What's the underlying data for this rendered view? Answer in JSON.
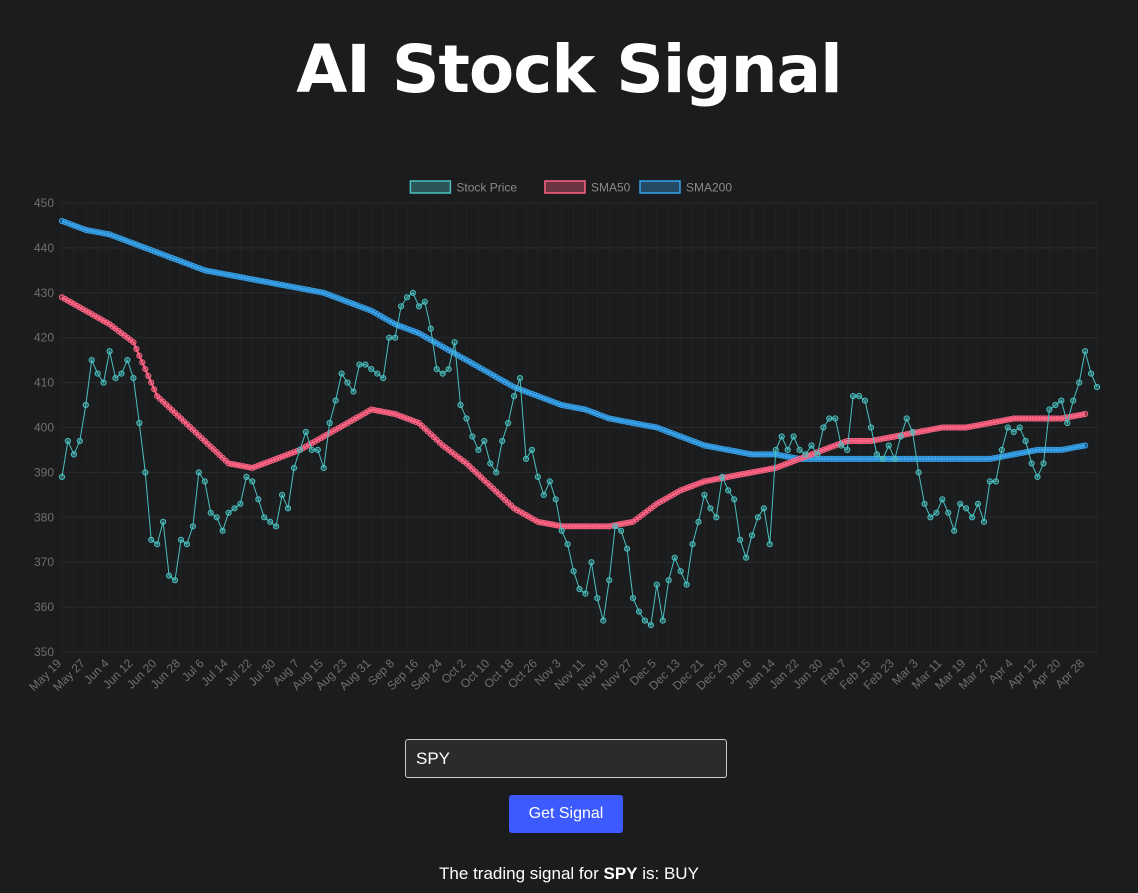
{
  "header": {
    "title": "AI Stock Signal"
  },
  "form": {
    "ticker_value": "SPY",
    "button_label": "Get Signal"
  },
  "result": {
    "prefix": "The trading signal for",
    "ticker": "SPY",
    "suffix": "is: BUY"
  },
  "colors": {
    "price": "#4bc0c0",
    "sma50": "#ff6384",
    "sma200": "#36a2eb"
  },
  "chart_data": {
    "type": "line",
    "ylim": [
      350,
      450
    ],
    "yticks": [
      350,
      360,
      370,
      380,
      390,
      400,
      410,
      420,
      430,
      440,
      450
    ],
    "x_tick_labels": [
      "May 19",
      "May 27",
      "Jun 4",
      "Jun 12",
      "Jun 20",
      "Jun 28",
      "Jul 6",
      "Jul 14",
      "Jul 22",
      "Jul 30",
      "Aug 7",
      "Aug 15",
      "Aug 23",
      "Aug 31",
      "Sep 8",
      "Sep 16",
      "Sep 24",
      "Oct 2",
      "Oct 10",
      "Oct 18",
      "Oct 26",
      "Nov 3",
      "Nov 11",
      "Nov 19",
      "Nov 27",
      "Dec 5",
      "Dec 13",
      "Dec 21",
      "Dec 29",
      "Jan 6",
      "Jan 14",
      "Jan 22",
      "Jan 30",
      "Feb 7",
      "Feb 15",
      "Feb 23",
      "Mar 3",
      "Mar 11",
      "Mar 19",
      "Mar 27",
      "Apr 4",
      "Apr 12",
      "Apr 20",
      "Apr 28"
    ],
    "grid": true,
    "legend": "top-center",
    "series": [
      {
        "name": "Stock Price",
        "key": "price",
        "points": [
          [
            "May 19",
            389
          ],
          [
            "May 21",
            397
          ],
          [
            "May 23",
            394
          ],
          [
            "May 25",
            397
          ],
          [
            "May 27",
            405
          ],
          [
            "May 29",
            415
          ],
          [
            "May 31",
            412
          ],
          [
            "Jun 2",
            410
          ],
          [
            "Jun 4",
            417
          ],
          [
            "Jun 6",
            411
          ],
          [
            "Jun 8",
            412
          ],
          [
            "Jun 10",
            415
          ],
          [
            "Jun 12",
            411
          ],
          [
            "Jun 14",
            401
          ],
          [
            "Jun 16",
            390
          ],
          [
            "Jun 18",
            375
          ],
          [
            "Jun 20",
            374
          ],
          [
            "Jun 22",
            379
          ],
          [
            "Jun 24",
            367
          ],
          [
            "Jun 26",
            366
          ],
          [
            "Jun 28",
            375
          ],
          [
            "Jun 30",
            374
          ],
          [
            "Jul 2",
            378
          ],
          [
            "Jul 4",
            390
          ],
          [
            "Jul 6",
            388
          ],
          [
            "Jul 8",
            381
          ],
          [
            "Jul 10",
            380
          ],
          [
            "Jul 12",
            377
          ],
          [
            "Jul 14",
            381
          ],
          [
            "Jul 16",
            382
          ],
          [
            "Jul 18",
            383
          ],
          [
            "Jul 20",
            389
          ],
          [
            "Jul 22",
            388
          ],
          [
            "Jul 24",
            384
          ],
          [
            "Jul 26",
            380
          ],
          [
            "Jul 28",
            379
          ],
          [
            "Jul 30",
            378
          ],
          [
            "Aug 1",
            385
          ],
          [
            "Aug 3",
            382
          ],
          [
            "Aug 5",
            391
          ],
          [
            "Aug 7",
            395
          ],
          [
            "Aug 9",
            399
          ],
          [
            "Aug 11",
            395
          ],
          [
            "Aug 13",
            395
          ],
          [
            "Aug 15",
            391
          ],
          [
            "Aug 17",
            401
          ],
          [
            "Aug 19",
            406
          ],
          [
            "Aug 21",
            412
          ],
          [
            "Aug 23",
            410
          ],
          [
            "Aug 25",
            408
          ],
          [
            "Aug 27",
            414
          ],
          [
            "Aug 29",
            414
          ],
          [
            "Aug 31",
            413
          ],
          [
            "Sep 2",
            412
          ],
          [
            "Sep 4",
            411
          ],
          [
            "Sep 6",
            420
          ],
          [
            "Sep 8",
            420
          ],
          [
            "Sep 10",
            427
          ],
          [
            "Sep 12",
            429
          ],
          [
            "Sep 14",
            430
          ],
          [
            "Sep 16",
            427
          ],
          [
            "Sep 18",
            428
          ],
          [
            "Sep 20",
            422
          ],
          [
            "Sep 22",
            413
          ],
          [
            "Sep 24",
            412
          ],
          [
            "Sep 26",
            413
          ],
          [
            "Sep 28",
            419
          ],
          [
            "Sep 30",
            405
          ],
          [
            "Oct 2",
            402
          ],
          [
            "Oct 4",
            398
          ],
          [
            "Oct 6",
            395
          ],
          [
            "Oct 8",
            397
          ],
          [
            "Oct 10",
            392
          ],
          [
            "Oct 12",
            390
          ],
          [
            "Oct 14",
            397
          ],
          [
            "Oct 16",
            401
          ],
          [
            "Oct 18",
            407
          ],
          [
            "Oct 20",
            411
          ],
          [
            "Oct 22",
            393
          ],
          [
            "Oct 24",
            395
          ],
          [
            "Oct 26",
            389
          ],
          [
            "Oct 28",
            385
          ],
          [
            "Oct 30",
            388
          ],
          [
            "Nov 1",
            384
          ],
          [
            "Nov 3",
            377
          ],
          [
            "Nov 5",
            374
          ],
          [
            "Nov 7",
            368
          ],
          [
            "Nov 9",
            364
          ],
          [
            "Nov 11",
            363
          ],
          [
            "Nov 13",
            370
          ],
          [
            "Nov 15",
            362
          ],
          [
            "Nov 17",
            357
          ],
          [
            "Nov 19",
            366
          ],
          [
            "Nov 21",
            378
          ],
          [
            "Nov 23",
            377
          ],
          [
            "Nov 25",
            373
          ],
          [
            "Nov 27",
            362
          ],
          [
            "Nov 29",
            359
          ],
          [
            "Dec 1",
            357
          ],
          [
            "Dec 3",
            356
          ],
          [
            "Dec 5",
            365
          ],
          [
            "Dec 7",
            357
          ],
          [
            "Dec 9",
            366
          ],
          [
            "Dec 11",
            371
          ],
          [
            "Dec 13",
            368
          ],
          [
            "Dec 15",
            365
          ],
          [
            "Dec 17",
            374
          ],
          [
            "Dec 19",
            379
          ],
          [
            "Dec 21",
            385
          ],
          [
            "Dec 23",
            382
          ],
          [
            "Dec 25",
            380
          ],
          [
            "Dec 27",
            389
          ],
          [
            "Dec 29",
            386
          ],
          [
            "Dec 31",
            384
          ],
          [
            "Jan 2",
            375
          ],
          [
            "Jan 4",
            371
          ],
          [
            "Jan 6",
            376
          ],
          [
            "Jan 8",
            380
          ],
          [
            "Jan 10",
            382
          ],
          [
            "Jan 12",
            374
          ],
          [
            "Jan 14",
            395
          ],
          [
            "Jan 16",
            398
          ],
          [
            "Jan 18",
            395
          ],
          [
            "Jan 20",
            398
          ],
          [
            "Jan 22",
            395
          ],
          [
            "Jan 24",
            394
          ],
          [
            "Jan 26",
            396
          ],
          [
            "Jan 28",
            394
          ],
          [
            "Jan 30",
            400
          ],
          [
            "Feb 1",
            402
          ],
          [
            "Feb 3",
            402
          ],
          [
            "Feb 5",
            396
          ],
          [
            "Feb 7",
            395
          ],
          [
            "Feb 9",
            407
          ],
          [
            "Feb 11",
            407
          ],
          [
            "Feb 13",
            406
          ],
          [
            "Feb 15",
            400
          ],
          [
            "Feb 17",
            394
          ],
          [
            "Feb 19",
            393
          ],
          [
            "Feb 21",
            396
          ],
          [
            "Feb 23",
            393
          ],
          [
            "Feb 25",
            398
          ],
          [
            "Feb 27",
            402
          ],
          [
            "Mar 1",
            399
          ],
          [
            "Mar 3",
            390
          ],
          [
            "Mar 5",
            383
          ],
          [
            "Mar 7",
            380
          ],
          [
            "Mar 9",
            381
          ],
          [
            "Mar 11",
            384
          ],
          [
            "Mar 13",
            381
          ],
          [
            "Mar 15",
            377
          ],
          [
            "Mar 17",
            383
          ],
          [
            "Mar 19",
            382
          ],
          [
            "Mar 21",
            380
          ],
          [
            "Mar 23",
            383
          ],
          [
            "Mar 25",
            379
          ],
          [
            "Mar 27",
            388
          ],
          [
            "Mar 29",
            388
          ],
          [
            "Mar 31",
            395
          ],
          [
            "Apr 2",
            400
          ],
          [
            "Apr 4",
            399
          ],
          [
            "Apr 6",
            400
          ],
          [
            "Apr 8",
            397
          ],
          [
            "Apr 10",
            392
          ],
          [
            "Apr 12",
            389
          ],
          [
            "Apr 14",
            392
          ],
          [
            "Apr 16",
            404
          ],
          [
            "Apr 18",
            405
          ],
          [
            "Apr 20",
            406
          ],
          [
            "Apr 22",
            401
          ],
          [
            "Apr 24",
            406
          ],
          [
            "Apr 26",
            410
          ],
          [
            "Apr 28",
            417
          ],
          [
            "Apr 30",
            412
          ],
          [
            "May 2",
            409
          ]
        ]
      },
      {
        "name": "SMA50",
        "key": "sma50",
        "points": [
          [
            "May 19",
            429
          ],
          [
            "May 27",
            426
          ],
          [
            "Jun 4",
            423
          ],
          [
            "Jun 12",
            419
          ],
          [
            "Jun 20",
            407
          ],
          [
            "Jun 28",
            402
          ],
          [
            "Jul 6",
            397
          ],
          [
            "Jul 14",
            392
          ],
          [
            "Jul 22",
            391
          ],
          [
            "Jul 30",
            393
          ],
          [
            "Aug 7",
            395
          ],
          [
            "Aug 15",
            398
          ],
          [
            "Aug 23",
            401
          ],
          [
            "Aug 31",
            404
          ],
          [
            "Sep 8",
            403
          ],
          [
            "Sep 16",
            401
          ],
          [
            "Sep 24",
            396
          ],
          [
            "Oct 2",
            392
          ],
          [
            "Oct 10",
            387
          ],
          [
            "Oct 18",
            382
          ],
          [
            "Oct 26",
            379
          ],
          [
            "Nov 3",
            378
          ],
          [
            "Nov 11",
            378
          ],
          [
            "Nov 19",
            378
          ],
          [
            "Nov 27",
            379
          ],
          [
            "Dec 5",
            383
          ],
          [
            "Dec 13",
            386
          ],
          [
            "Dec 21",
            388
          ],
          [
            "Dec 29",
            389
          ],
          [
            "Jan 6",
            390
          ],
          [
            "Jan 14",
            391
          ],
          [
            "Jan 22",
            393
          ],
          [
            "Jan 30",
            395
          ],
          [
            "Feb 7",
            397
          ],
          [
            "Feb 15",
            397
          ],
          [
            "Feb 23",
            398
          ],
          [
            "Mar 3",
            399
          ],
          [
            "Mar 11",
            400
          ],
          [
            "Mar 19",
            400
          ],
          [
            "Mar 27",
            401
          ],
          [
            "Apr 4",
            402
          ],
          [
            "Apr 12",
            402
          ],
          [
            "Apr 20",
            402
          ],
          [
            "Apr 28",
            403
          ]
        ]
      },
      {
        "name": "SMA200",
        "key": "sma200",
        "points": [
          [
            "May 19",
            446
          ],
          [
            "May 27",
            444
          ],
          [
            "Jun 4",
            443
          ],
          [
            "Jun 12",
            441
          ],
          [
            "Jun 20",
            439
          ],
          [
            "Jun 28",
            437
          ],
          [
            "Jul 6",
            435
          ],
          [
            "Jul 14",
            434
          ],
          [
            "Jul 22",
            433
          ],
          [
            "Jul 30",
            432
          ],
          [
            "Aug 7",
            431
          ],
          [
            "Aug 15",
            430
          ],
          [
            "Aug 23",
            428
          ],
          [
            "Aug 31",
            426
          ],
          [
            "Sep 8",
            423
          ],
          [
            "Sep 16",
            421
          ],
          [
            "Sep 24",
            418
          ],
          [
            "Oct 2",
            415
          ],
          [
            "Oct 10",
            412
          ],
          [
            "Oct 18",
            409
          ],
          [
            "Oct 26",
            407
          ],
          [
            "Nov 3",
            405
          ],
          [
            "Nov 11",
            404
          ],
          [
            "Nov 19",
            402
          ],
          [
            "Nov 27",
            401
          ],
          [
            "Dec 5",
            400
          ],
          [
            "Dec 13",
            398
          ],
          [
            "Dec 21",
            396
          ],
          [
            "Dec 29",
            395
          ],
          [
            "Jan 6",
            394
          ],
          [
            "Jan 14",
            394
          ],
          [
            "Jan 22",
            393
          ],
          [
            "Jan 30",
            393
          ],
          [
            "Feb 7",
            393
          ],
          [
            "Feb 15",
            393
          ],
          [
            "Feb 23",
            393
          ],
          [
            "Mar 3",
            393
          ],
          [
            "Mar 11",
            393
          ],
          [
            "Mar 19",
            393
          ],
          [
            "Mar 27",
            393
          ],
          [
            "Apr 4",
            394
          ],
          [
            "Apr 12",
            395
          ],
          [
            "Apr 20",
            395
          ],
          [
            "Apr 28",
            396
          ]
        ]
      }
    ]
  }
}
